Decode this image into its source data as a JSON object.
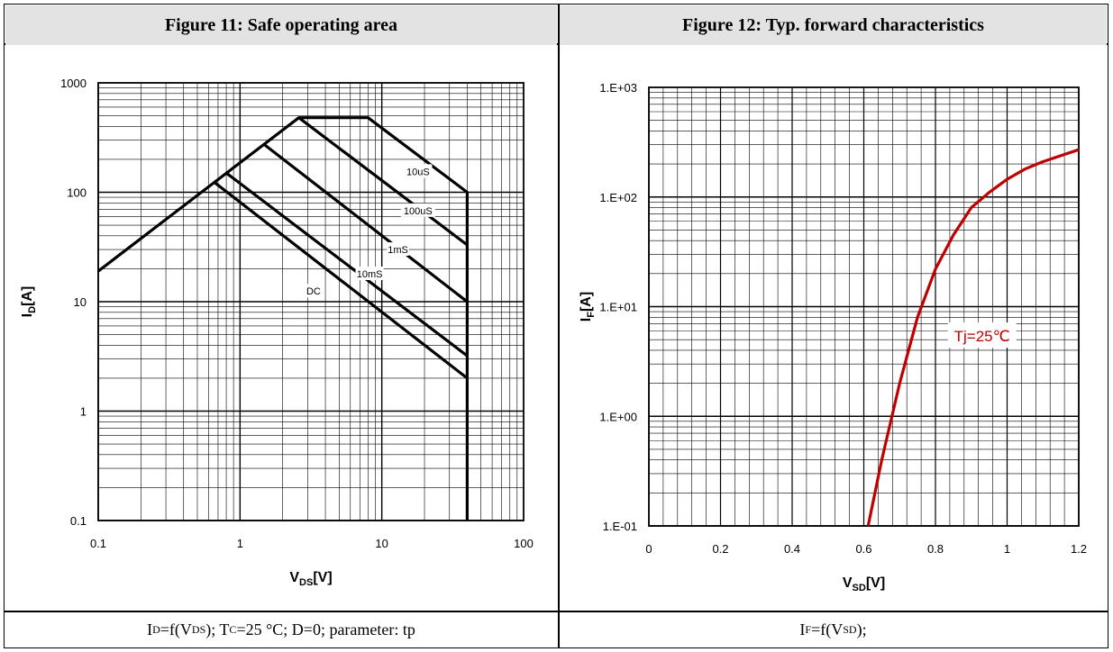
{
  "left": {
    "title": "Figure 11:  Safe operating area",
    "caption": {
      "parts": [
        "I",
        "D",
        "=f(V",
        "DS",
        "); T",
        "C",
        "=25 °C; D=0; parameter: tp"
      ]
    },
    "chart_data": {
      "type": "line",
      "xscale": "log",
      "yscale": "log",
      "xlim": [
        0.1,
        100
      ],
      "ylim": [
        0.1,
        1000
      ],
      "xticks": [
        "0.1",
        "1",
        "10",
        "100"
      ],
      "yticks": [
        "0.1",
        "1",
        "10",
        "100",
        "1000"
      ],
      "xlabel": {
        "main": "V",
        "sub": "DS",
        "unit": "[V]"
      },
      "ylabel": {
        "main": "I",
        "sub": "D",
        "unit": "[A]"
      },
      "grid": true,
      "series": [
        {
          "name": "10uS",
          "points": [
            [
              0.1,
              19
            ],
            [
              2.6,
              480
            ],
            [
              8,
              480
            ],
            [
              40,
              100
            ],
            [
              40,
              0.1
            ]
          ]
        },
        {
          "name": "100uS",
          "points": [
            [
              2.6,
              480
            ],
            [
              40,
              33
            ]
          ]
        },
        {
          "name": "1mS",
          "points": [
            [
              1.5,
              270
            ],
            [
              40,
              10
            ]
          ]
        },
        {
          "name": "10mS",
          "points": [
            [
              0.8,
              150
            ],
            [
              40,
              3.2
            ]
          ]
        },
        {
          "name": "DC",
          "points": [
            [
              0.65,
              125
            ],
            [
              40,
              2
            ]
          ]
        }
      ],
      "annotations": [
        {
          "text": "10uS",
          "x": 18,
          "y": 155
        },
        {
          "text": "100uS",
          "x": 18,
          "y": 68
        },
        {
          "text": "1mS",
          "x": 13,
          "y": 30
        },
        {
          "text": "10mS",
          "x": 8.2,
          "y": 18
        },
        {
          "text": "DC",
          "x": 3.3,
          "y": 12.5
        }
      ]
    }
  },
  "right": {
    "title": "Figure 12:  Typ. forward characteristics",
    "caption": {
      "parts": [
        "I",
        "F",
        "=f(V",
        "SD",
        ");"
      ]
    },
    "chart_data": {
      "type": "line",
      "xscale": "linear",
      "yscale": "log",
      "xlim": [
        0,
        1.2
      ],
      "ylim": [
        0.1,
        1000
      ],
      "xticks": [
        "0",
        "0.2",
        "0.4",
        "0.6",
        "0.8",
        "1",
        "1.2"
      ],
      "yticks": [
        "1.E-01",
        "1.E+00",
        "1.E+01",
        "1.E+02",
        "1.E+03"
      ],
      "xlabel": {
        "main": "V",
        "sub": "SD",
        "unit": "[V]"
      },
      "ylabel": {
        "main": "I",
        "sub": "F",
        "unit": "[A]"
      },
      "grid": true,
      "series": [
        {
          "name": "Tj=25℃",
          "color": "#c00000",
          "points": [
            [
              0.612,
              0.1
            ],
            [
              0.65,
              0.4
            ],
            [
              0.7,
              2
            ],
            [
              0.75,
              8
            ],
            [
              0.8,
              22
            ],
            [
              0.85,
              45
            ],
            [
              0.9,
              80
            ],
            [
              0.95,
              110
            ],
            [
              1.0,
              145
            ],
            [
              1.05,
              180
            ],
            [
              1.1,
              210
            ],
            [
              1.2,
              270
            ]
          ]
        }
      ],
      "annotations": [
        {
          "text": "Tj=25℃",
          "x": 0.93,
          "y": 5.5,
          "color": "#c00000"
        }
      ]
    }
  }
}
